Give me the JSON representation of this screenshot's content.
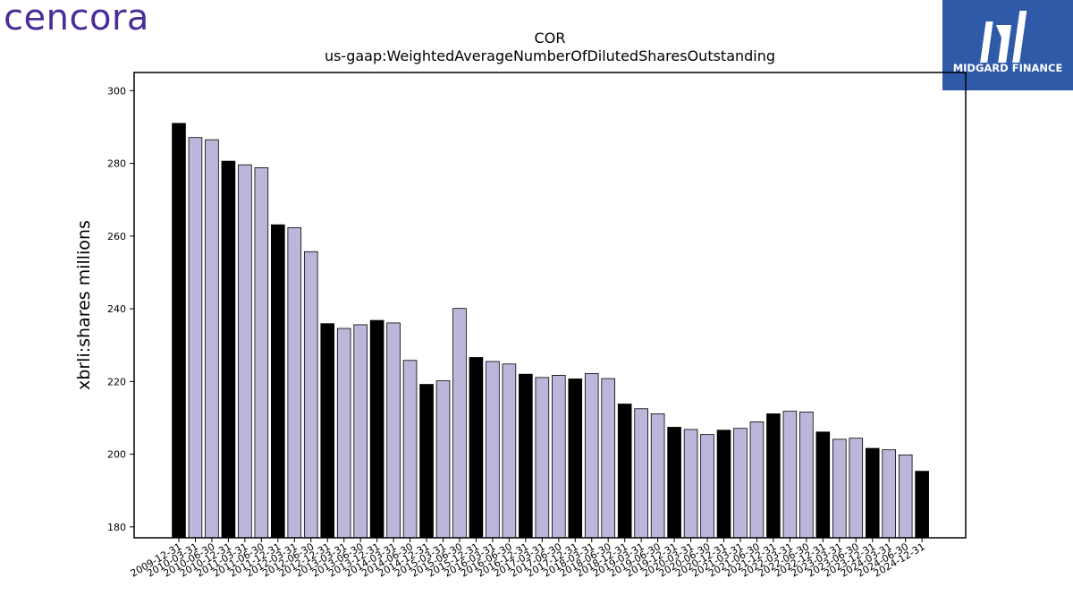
{
  "brand": {
    "logo_text": "cencora",
    "badge_text": "MIDGARD FINANCE",
    "badge_color": "#2e5aa8"
  },
  "chart_data": {
    "type": "bar",
    "title": "COR",
    "subtitle": "us-gaap:WeightedAverageNumberOfDilutedSharesOutstanding",
    "xlabel": "",
    "ylabel": "xbrli:shares millions",
    "ylim": [
      177,
      305
    ],
    "yticks": [
      180,
      200,
      220,
      240,
      260,
      280,
      300
    ],
    "grid": false,
    "colors": {
      "annual": "#000000",
      "quarterly": "#bcb6da",
      "edge": "#000000"
    },
    "categories": [
      "2009-12-31",
      "2010-03-31",
      "2010-06-30",
      "2010-12-31",
      "2011-03-31",
      "2011-06-30",
      "2011-12-31",
      "2012-03-31",
      "2012-06-30",
      "2012-12-31",
      "2013-03-31",
      "2013-06-30",
      "2013-12-31",
      "2014-03-31",
      "2014-06-30",
      "2014-12-31",
      "2015-03-31",
      "2015-06-30",
      "2015-12-31",
      "2016-03-31",
      "2016-06-30",
      "2016-12-31",
      "2017-03-31",
      "2017-06-30",
      "2017-12-31",
      "2018-03-31",
      "2018-06-30",
      "2018-12-31",
      "2019-03-31",
      "2019-06-30",
      "2019-12-31",
      "2020-03-31",
      "2020-06-30",
      "2020-12-31",
      "2021-03-31",
      "2021-06-30",
      "2021-12-31",
      "2022-03-31",
      "2022-06-30",
      "2022-12-31",
      "2023-03-31",
      "2023-06-30",
      "2023-12-31",
      "2024-03-31",
      "2024-06-30",
      "2024-12-31"
    ],
    "values": [
      291.0,
      287.1,
      286.5,
      280.6,
      279.6,
      278.8,
      263.1,
      262.3,
      255.7,
      235.9,
      234.6,
      235.6,
      236.8,
      236.1,
      225.8,
      219.2,
      220.2,
      240.1,
      226.6,
      225.5,
      224.8,
      222.0,
      221.1,
      221.7,
      220.7,
      222.2,
      220.8,
      213.8,
      212.5,
      211.1,
      207.4,
      206.8,
      205.4,
      206.6,
      207.1,
      208.9,
      211.1,
      211.8,
      211.6,
      206.1,
      204.1,
      204.4,
      201.6,
      201.2,
      199.8,
      195.3
    ],
    "bar_kind": [
      "annual",
      "quarterly",
      "quarterly",
      "annual",
      "quarterly",
      "quarterly",
      "annual",
      "quarterly",
      "quarterly",
      "annual",
      "quarterly",
      "quarterly",
      "annual",
      "quarterly",
      "quarterly",
      "annual",
      "quarterly",
      "quarterly",
      "annual",
      "quarterly",
      "quarterly",
      "annual",
      "quarterly",
      "quarterly",
      "annual",
      "quarterly",
      "quarterly",
      "annual",
      "quarterly",
      "quarterly",
      "annual",
      "quarterly",
      "quarterly",
      "annual",
      "quarterly",
      "quarterly",
      "annual",
      "quarterly",
      "quarterly",
      "annual",
      "quarterly",
      "quarterly",
      "annual",
      "quarterly",
      "quarterly",
      "annual"
    ]
  }
}
